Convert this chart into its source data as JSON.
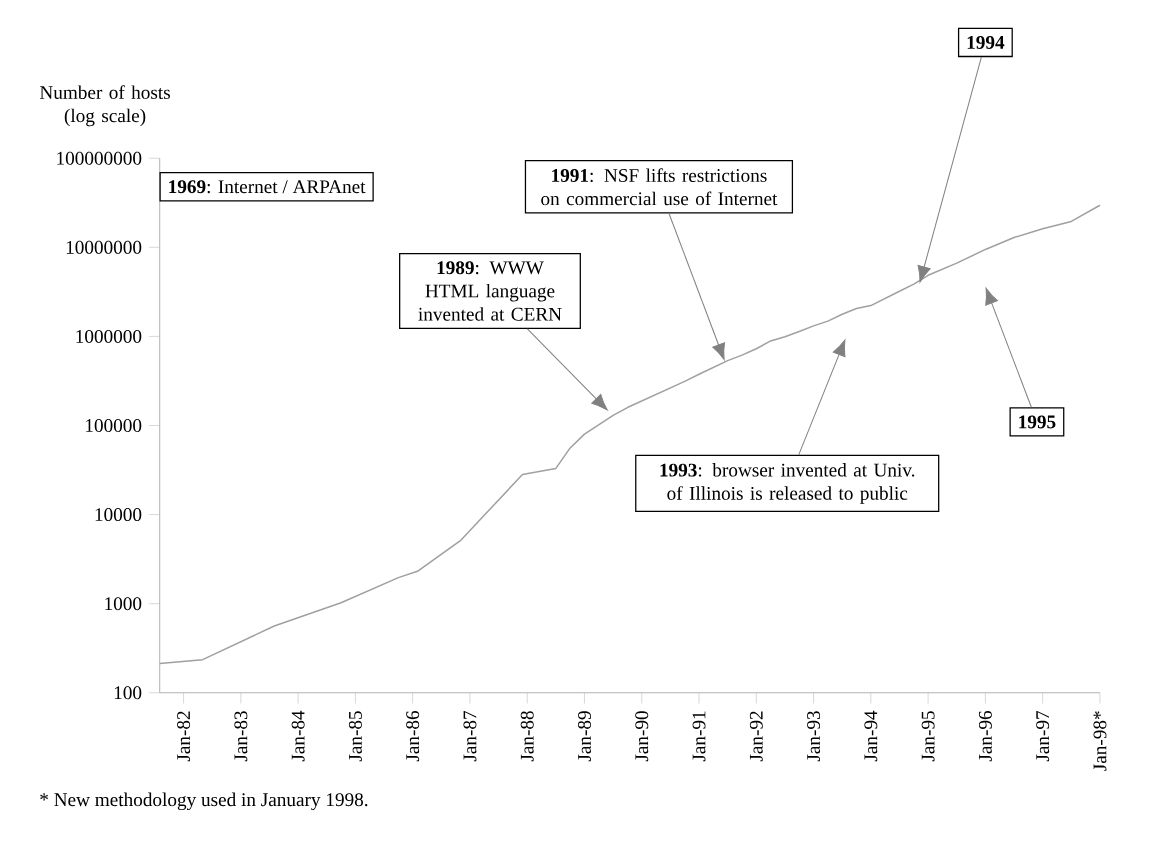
{
  "chart_data": {
    "type": "line",
    "ylabel": "Number of hosts (log scale)",
    "log": true,
    "marker": "none",
    "x": [
      "1981-08",
      "1982-05",
      "1983-08",
      "1984-10",
      "1985-10",
      "1986-02",
      "1986-11",
      "1987-12",
      "1988-07",
      "1988-10",
      "1989-01",
      "1989-07",
      "1989-10",
      "1990-10",
      "1991-01",
      "1991-07",
      "1991-10",
      "1992-01",
      "1992-04",
      "1992-07",
      "1992-10",
      "1993-01",
      "1993-04",
      "1993-07",
      "1993-10",
      "1994-01",
      "1994-07",
      "1994-10",
      "1995-01",
      "1995-07",
      "1996-01",
      "1996-07",
      "1997-01",
      "1997-07",
      "1998-01"
    ],
    "series": [
      {
        "color": "#a0a0a0",
        "values": [
          213,
          235,
          562,
          1024,
          1961,
          2308,
          5089,
          28174,
          33000,
          56000,
          80000,
          130000,
          159000,
          313000,
          376000,
          535000,
          617000,
          727000,
          890000,
          992000,
          1136000,
          1313000,
          1486000,
          1776000,
          2056000,
          2217000,
          3212000,
          3864000,
          4852000,
          6642000,
          9472000,
          12881000,
          16146000,
          19540000,
          29670000
        ]
      }
    ],
    "xlim": [
      "1981-08",
      "1998-01"
    ],
    "ylim": [
      100,
      100000000
    ],
    "xticks": [
      {
        "value": "1982-01",
        "label": "Jan-82"
      },
      {
        "value": "1983-01",
        "label": "Jan-83"
      },
      {
        "value": "1984-01",
        "label": "Jan-84"
      },
      {
        "value": "1985-01",
        "label": "Jan-85"
      },
      {
        "value": "1986-01",
        "label": "Jan-86"
      },
      {
        "value": "1987-01",
        "label": "Jan-87"
      },
      {
        "value": "1988-01",
        "label": "Jan-88"
      },
      {
        "value": "1989-01",
        "label": "Jan-89"
      },
      {
        "value": "1990-01",
        "label": "Jan-90"
      },
      {
        "value": "1991-01",
        "label": "Jan-91"
      },
      {
        "value": "1992-01",
        "label": "Jan-92"
      },
      {
        "value": "1993-01",
        "label": "Jan-93"
      },
      {
        "value": "1994-01",
        "label": "Jan-94"
      },
      {
        "value": "1995-01",
        "label": "Jan-95"
      },
      {
        "value": "1996-01",
        "label": "Jan-96"
      },
      {
        "value": "1997-01",
        "label": "Jan-97"
      },
      {
        "value": "1998-01",
        "label": "Jan-98*"
      }
    ],
    "yticks": [
      100,
      1000,
      10000,
      100000,
      1000000,
      10000000,
      100000000
    ],
    "annotations": [
      "**1969**: Internet / ARPAnet",
      "**1989**: WWW HTML language invented at CERN",
      "**1991**: NSF lifts restrictions on commercial use of Internet",
      "**1993**: browser invented at Univ. of Illinois is released to public",
      "**1994**",
      "**1995**",
      "* New methodology used in January  1998."
    ]
  }
}
